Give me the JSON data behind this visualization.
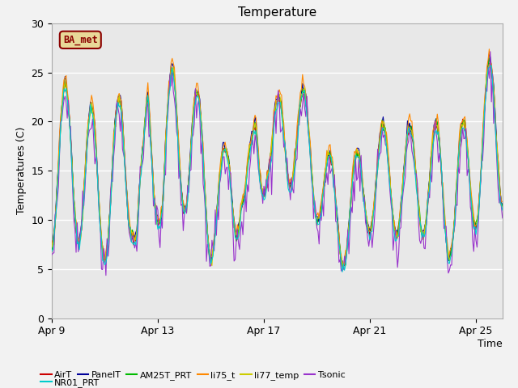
{
  "title": "Temperature",
  "xlabel": "Time",
  "ylabel": "Temperatures (C)",
  "ylim": [
    0,
    30
  ],
  "yticks": [
    0,
    5,
    10,
    15,
    20,
    25,
    30
  ],
  "series": {
    "AirT": {
      "color": "#cc0000",
      "lw": 0.8
    },
    "PanelT": {
      "color": "#000099",
      "lw": 0.8
    },
    "AM25T_PRT": {
      "color": "#00bb00",
      "lw": 0.8
    },
    "li75_t": {
      "color": "#ff8800",
      "lw": 0.8
    },
    "li77_temp": {
      "color": "#cccc00",
      "lw": 0.8
    },
    "Tsonic": {
      "color": "#9933cc",
      "lw": 0.8
    },
    "NR01_PRT": {
      "color": "#00cccc",
      "lw": 0.8
    }
  },
  "legend_label": "BA_met",
  "legend_bbox_facecolor": "#e8d898",
  "legend_bbox_edgecolor": "#8b0000",
  "plot_bg_color": "#e8e8e8",
  "fig_bg_color": "#f2f2f2",
  "grid_color": "#ffffff",
  "title_fontsize": 11,
  "axis_label_fontsize": 9,
  "tick_fontsize": 9,
  "legend_fontsize": 8
}
